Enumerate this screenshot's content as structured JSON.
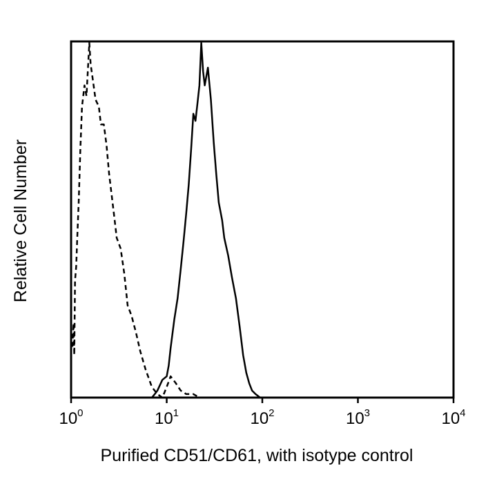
{
  "chart_data": {
    "type": "line",
    "title": "",
    "xlabel": "Purified CD51/CD61, with isotype control",
    "ylabel": "Relative Cell Number",
    "x_scale": "log",
    "xlim": [
      1,
      10000
    ],
    "ylim": [
      0,
      100
    ],
    "grid": false,
    "legend": "none",
    "x_ticks": [
      {
        "base": "10",
        "exp": "0",
        "value": 1
      },
      {
        "base": "10",
        "exp": "1",
        "value": 10
      },
      {
        "base": "10",
        "exp": "2",
        "value": 100
      },
      {
        "base": "10",
        "exp": "3",
        "value": 1000
      },
      {
        "base": "10",
        "exp": "4",
        "value": 10000
      }
    ],
    "series": [
      {
        "style": "dashed",
        "color": "#000000",
        "x": [
          1.0,
          1.03,
          1.06,
          1.08,
          1.1,
          1.13,
          1.16,
          1.2,
          1.25,
          1.3,
          1.38,
          1.45,
          1.55,
          1.6,
          1.7,
          1.8,
          1.95,
          2.05,
          2.2,
          2.35,
          2.5,
          2.8,
          3.0,
          3.3,
          3.6,
          3.9,
          4.3,
          4.8,
          5.3,
          6.0,
          7.0,
          8.0,
          9.0,
          10.0,
          11.0,
          12.5,
          14.0,
          16.0,
          19.0,
          22.0,
          27.0
        ],
        "y": [
          16,
          14,
          21,
          12,
          33,
          37,
          45,
          55,
          70,
          82,
          88,
          85,
          100,
          94,
          89,
          84,
          82,
          77,
          77,
          71,
          63,
          52,
          45,
          42,
          35,
          26,
          23,
          18,
          13,
          8,
          3,
          1,
          0,
          3,
          6,
          4,
          2,
          1,
          1,
          0,
          0
        ]
      },
      {
        "style": "solid",
        "color": "#000000",
        "x": [
          7.0,
          7.5,
          8.0,
          9.0,
          10.0,
          10.5,
          11.0,
          12.0,
          13.0,
          14.0,
          15.0,
          16.0,
          17.0,
          18.0,
          19.0,
          20.0,
          21.0,
          22.0,
          23.0,
          24.0,
          25.0,
          27.0,
          29.0,
          31.0,
          33.0,
          35.0,
          38.0,
          40.0,
          44.0,
          48.0,
          53.0,
          58.0,
          63.0,
          68.0,
          73.0,
          78.0,
          85.0,
          95.0
        ],
        "y": [
          0,
          1,
          2,
          5,
          6,
          9,
          14,
          22,
          28,
          36,
          44,
          52,
          60,
          70,
          80,
          78,
          83,
          88,
          100,
          92,
          88,
          93,
          84,
          72,
          63,
          55,
          50,
          45,
          40,
          34,
          28,
          20,
          12,
          7,
          4,
          2,
          1,
          0
        ]
      }
    ]
  }
}
